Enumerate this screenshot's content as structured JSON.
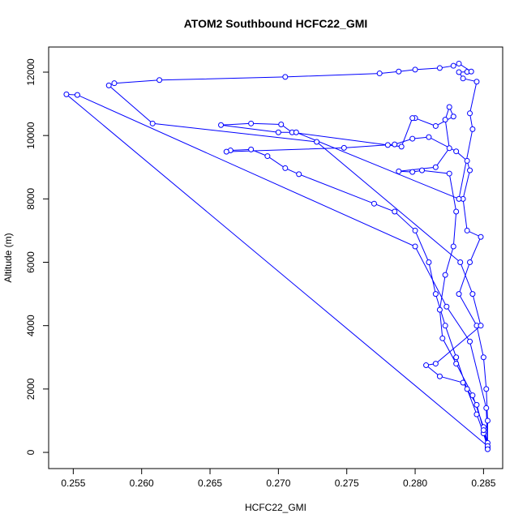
{
  "chart_data": {
    "type": "line",
    "title": "ATOM2 Southbound HCFC22_GMI",
    "xlabel": "HCFC22_GMI",
    "ylabel": "Altitude (m)",
    "color": "#0000ff",
    "xlim": [
      0.2532,
      0.2864
    ],
    "ylim": [
      -511,
      12793
    ],
    "xticks": [
      0.255,
      {
        "value": 0.26,
        "label": "0.260"
      },
      0.265,
      {
        "value": 0.27,
        "label": "0.270"
      },
      0.275,
      {
        "value": 0.28,
        "label": "0.280"
      },
      0.285
    ],
    "yticks": [
      0,
      2000,
      4000,
      6000,
      8000,
      10000,
      12000
    ],
    "x": [
      0.2853,
      0.285,
      0.2845,
      0.2838,
      0.283,
      0.2822,
      0.2815,
      0.281,
      0.28,
      0.2785,
      0.277,
      0.2715,
      0.2705,
      0.2692,
      0.268,
      0.2665,
      0.2662,
      0.2748,
      0.2785,
      0.2798,
      0.281,
      0.283,
      0.2838,
      0.284,
      0.2835,
      0.2838,
      0.2848,
      0.284,
      0.2832,
      0.2845,
      0.285,
      0.2852,
      0.2853,
      0.2853,
      0.285,
      0.2842,
      0.283,
      0.282,
      0.2818,
      0.2822,
      0.2828,
      0.283,
      0.2825,
      0.2805,
      0.2798,
      0.2788,
      0.2815,
      0.2825,
      0.2822,
      0.2825,
      0.2828,
      0.2815,
      0.28,
      0.2798,
      0.279,
      0.278,
      0.271,
      0.2702,
      0.268,
      0.2658,
      0.27,
      0.2713,
      0.2832,
      0.2842,
      0.284,
      0.2845,
      0.2835,
      0.2832,
      0.2838,
      0.2841,
      0.2832,
      0.2828,
      0.2818,
      0.28,
      0.2788,
      0.2774,
      0.2705,
      0.2613,
      0.258,
      0.2576,
      0.2608,
      0.2728,
      0.2833,
      0.2842,
      0.2848,
      0.2815,
      0.2808,
      0.2818,
      0.2835,
      0.2845,
      0.285,
      0.2853,
      0.2545,
      0.2553,
      0.28,
      0.2823,
      0.284,
      0.2852,
      0.2853
    ],
    "values": [
      150,
      600,
      1200,
      2000,
      3000,
      4000,
      5000,
      6000,
      7000,
      7600,
      7850,
      8780,
      8970,
      9350,
      9560,
      9530,
      9490,
      9610,
      9720,
      9900,
      9950,
      9500,
      9200,
      8900,
      8000,
      7000,
      6800,
      6000,
      5000,
      4000,
      3000,
      2000,
      1000,
      300,
      800,
      1800,
      2800,
      3600,
      4500,
      5600,
      6500,
      7600,
      8800,
      8900,
      8850,
      8870,
      9000,
      9600,
      10500,
      10900,
      10600,
      10300,
      10550,
      10550,
      9650,
      9700,
      10100,
      10350,
      10380,
      10330,
      10100,
      10100,
      8000,
      10200,
      10700,
      11700,
      11800,
      12000,
      12010,
      12020,
      12270,
      12200,
      12130,
      12080,
      12020,
      11960,
      11850,
      11750,
      11650,
      11580,
      10380,
      9800,
      6000,
      5000,
      4000,
      2800,
      2750,
      2400,
      2200,
      1500,
      700,
      200,
      11300,
      11280,
      6500,
      4600,
      3500,
      1400,
      100
    ]
  }
}
